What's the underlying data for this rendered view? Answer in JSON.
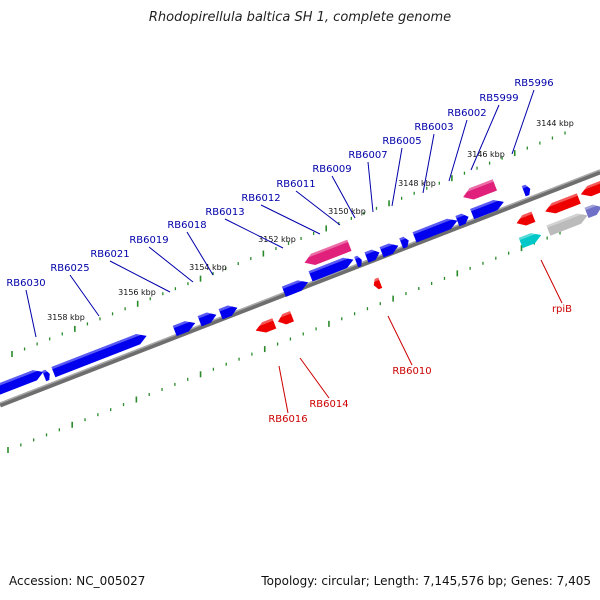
{
  "title": "Rhodopirellula baltica SH 1, complete genome",
  "footer": {
    "accession": "Accession: NC_005027",
    "summary": "Topology: circular; Length: 7,145,576 bp; Genes: 7,405"
  },
  "colors": {
    "forward_gene": "#0000ee",
    "reverse_gene": "#ee0000",
    "pink_gene": "#e0207a",
    "cyan_gene": "#00c8c8",
    "grey_gene": "#bbbbbb",
    "violet_gene": "#7070c8",
    "backbone": "#808080",
    "tick": "#2a8a2a",
    "label_forward": "#0000aa",
    "label_reverse": "#cc0000"
  },
  "kbp_labels": [
    "3144 kbp",
    "3146 kbp",
    "3148 kbp",
    "3150 kbp",
    "3152 kbp",
    "3154 kbp",
    "3156 kbp",
    "3158 kbp"
  ],
  "labels_forward": [
    "RB5996",
    "RB5999",
    "RB6002",
    "RB6003",
    "RB6005",
    "RB6007",
    "RB6009",
    "RB6011",
    "RB6012",
    "RB6013",
    "RB6018",
    "RB6019",
    "RB6021",
    "RB6025",
    "RB6030"
  ],
  "labels_reverse": [
    "rpiB",
    "RB6010",
    "RB6014",
    "RB6016"
  ]
}
